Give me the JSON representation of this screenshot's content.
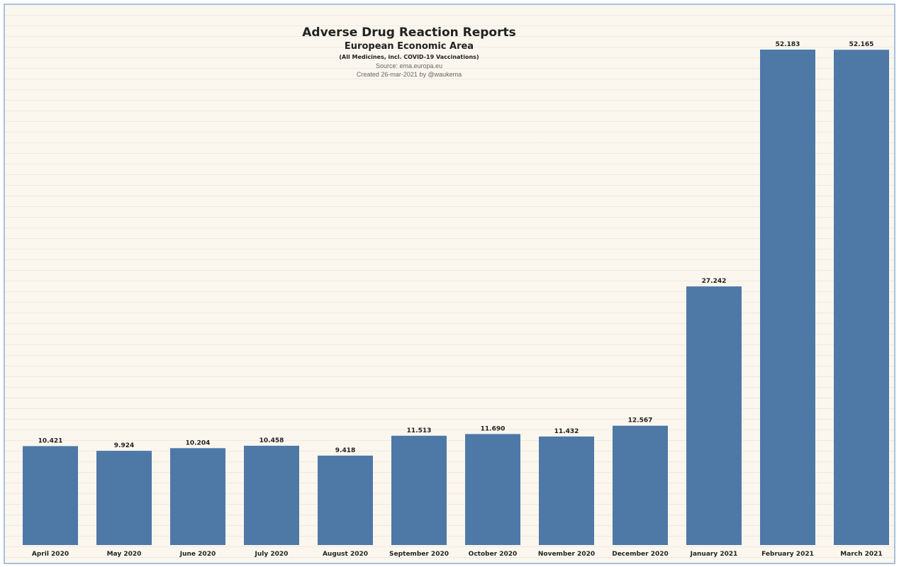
{
  "chart_data": {
    "type": "bar",
    "title": "Adverse Drug Reaction Reports",
    "subtitle": "European Economic Area",
    "note": "(All Medicines, incl. COVID-19 Vaccinations)",
    "source": "Source: ema.europa.eu",
    "created": "Created 26-mar-2021 by @waukema",
    "xlabel": "",
    "ylabel": "",
    "categories": [
      "April 2020",
      "May 2020",
      "June 2020",
      "July 2020",
      "August 2020",
      "September 2020",
      "October 2020",
      "November 2020",
      "December 2020",
      "January 2021",
      "February 2021",
      "March 2021"
    ],
    "values": [
      10421,
      9924,
      10204,
      10458,
      9418,
      11513,
      11690,
      11432,
      12567,
      27242,
      52183,
      52165
    ],
    "value_labels": [
      "10.421",
      "9.924",
      "10.204",
      "10.458",
      "9.418",
      "11.513",
      "11.690",
      "11.432",
      "12.567",
      "27.242",
      "52.183",
      "52.165"
    ],
    "ylim": [
      0,
      52183
    ],
    "grid": false,
    "bar_color": "#4e79a7",
    "background_color": "#fbf7ef"
  }
}
